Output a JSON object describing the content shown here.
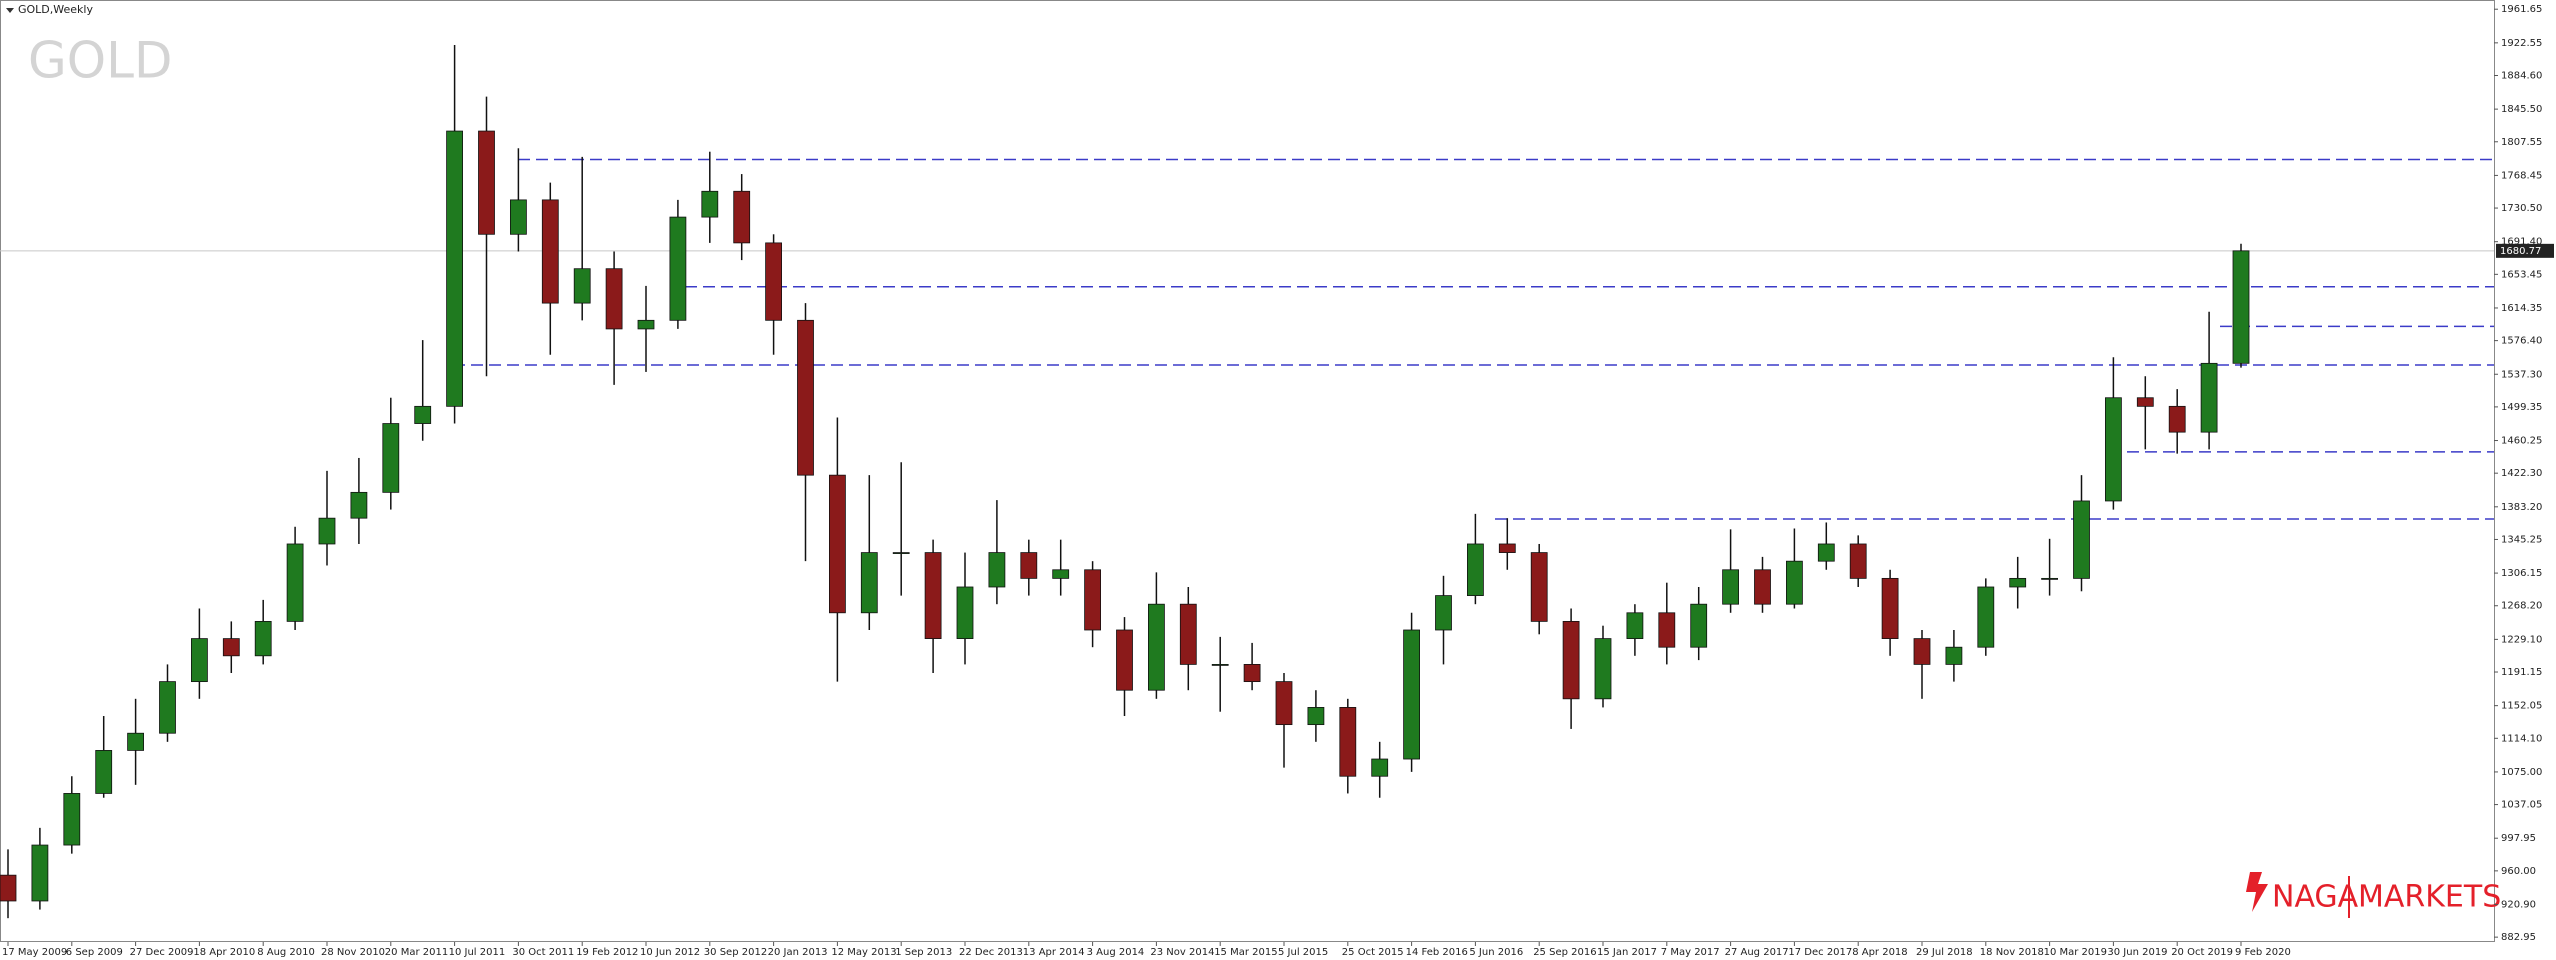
{
  "chart_data": {
    "type": "candlestick",
    "title": "GOLD,Weekly",
    "watermark": "GOLD",
    "brand": {
      "left": "NAGA",
      "right": "MARKETS"
    },
    "categories": [
      "17 May 2009",
      null,
      "6 Sep 2009",
      null,
      "27 Dec 2009",
      null,
      "18 Apr 2010",
      null,
      "8 Aug 2010",
      null,
      "28 Nov 2010",
      null,
      "20 Mar 2011",
      null,
      "10 Jul 2011",
      null,
      "30 Oct 2011",
      null,
      "19 Feb 2012",
      null,
      "10 Jun 2012",
      null,
      "30 Sep 2012",
      null,
      "20 Jan 2013",
      null,
      "12 May 2013",
      null,
      "1 Sep 2013",
      null,
      "22 Dec 2013",
      null,
      "13 Apr 2014",
      null,
      "3 Aug 2014",
      null,
      "23 Nov 2014",
      null,
      "15 Mar 2015",
      null,
      "5 Jul 2015",
      null,
      "25 Oct 2015",
      null,
      "14 Feb 2016",
      null,
      "5 Jun 2016",
      null,
      "25 Sep 2016",
      null,
      "15 Jan 2017",
      null,
      "7 May 2017",
      null,
      "27 Aug 2017",
      null,
      "17 Dec 2017",
      null,
      "8 Apr 2018",
      null,
      "29 Jul 2018",
      null,
      "18 Nov 2018",
      null,
      "10 Mar 2019",
      null,
      "30 Jun 2019",
      null,
      "20 Oct 2019",
      null,
      "9 Feb 2020"
    ],
    "open": [
      955,
      925,
      990,
      1050,
      1100,
      1120,
      1180,
      1230,
      1210,
      1250,
      1340,
      1370,
      1400,
      1480,
      1500,
      1820,
      1700,
      1740,
      1620,
      1660,
      1590,
      1600,
      1720,
      1750,
      1690,
      1600,
      1420,
      1260,
      1330,
      1330,
      1230,
      1290,
      1330,
      1300,
      1310,
      1240,
      1170,
      1270,
      1200,
      1200,
      1180,
      1130,
      1150,
      1070,
      1090,
      1240,
      1280,
      1340,
      1330,
      1250,
      1160,
      1230,
      1260,
      1220,
      1270,
      1310,
      1270,
      1320,
      1340,
      1300,
      1230,
      1200,
      1220,
      1290,
      1300,
      1300,
      1390,
      1510,
      1500,
      1470,
      1550
    ],
    "high": [
      985,
      1010,
      1070,
      1140,
      1160,
      1200,
      1265,
      1250,
      1275,
      1360,
      1425,
      1440,
      1510,
      1577,
      1920,
      1860,
      1800,
      1760,
      1790,
      1680,
      1640,
      1740,
      1796,
      1770,
      1700,
      1620,
      1487,
      1420,
      1435,
      1345,
      1330,
      1391,
      1345,
      1345,
      1320,
      1255,
      1307,
      1290,
      1232,
      1225,
      1190,
      1170,
      1160,
      1110,
      1260,
      1303,
      1375,
      1370,
      1340,
      1265,
      1245,
      1270,
      1295,
      1290,
      1357,
      1325,
      1358,
      1365,
      1350,
      1310,
      1240,
      1240,
      1300,
      1325,
      1346,
      1420,
      1557,
      1535,
      1520,
      1610,
      1689
    ],
    "low": [
      905,
      915,
      980,
      1045,
      1060,
      1110,
      1160,
      1190,
      1200,
      1240,
      1315,
      1340,
      1380,
      1460,
      1480,
      1535,
      1680,
      1560,
      1600,
      1525,
      1540,
      1590,
      1690,
      1670,
      1560,
      1320,
      1180,
      1240,
      1280,
      1190,
      1200,
      1270,
      1280,
      1280,
      1220,
      1140,
      1160,
      1170,
      1145,
      1170,
      1080,
      1110,
      1050,
      1045,
      1075,
      1200,
      1270,
      1310,
      1235,
      1125,
      1150,
      1210,
      1200,
      1205,
      1260,
      1260,
      1265,
      1310,
      1290,
      1210,
      1160,
      1180,
      1210,
      1265,
      1280,
      1285,
      1380,
      1450,
      1445,
      1450,
      1545
    ],
    "close": [
      925,
      990,
      1050,
      1100,
      1120,
      1180,
      1230,
      1210,
      1250,
      1340,
      1370,
      1400,
      1480,
      1500,
      1820,
      1700,
      1740,
      1620,
      1660,
      1590,
      1600,
      1720,
      1750,
      1690,
      1600,
      1420,
      1260,
      1330,
      1330,
      1230,
      1290,
      1330,
      1300,
      1310,
      1240,
      1170,
      1270,
      1200,
      1200,
      1180,
      1130,
      1150,
      1070,
      1090,
      1240,
      1280,
      1340,
      1330,
      1250,
      1160,
      1230,
      1260,
      1220,
      1270,
      1310,
      1270,
      1320,
      1340,
      1300,
      1230,
      1200,
      1220,
      1290,
      1300,
      1300,
      1390,
      1510,
      1500,
      1470,
      1550,
      1680.77
    ],
    "up_color": "#1f7a1f",
    "down_color": "#8b1a1a",
    "level_color": "#3b3bc8",
    "levels": [
      1787,
      1639,
      1593,
      1548,
      1447,
      1369
    ],
    "ylim": [
      877.3,
      1971.2
    ],
    "yticks": [
      1961.65,
      1922.55,
      {
        "value": 1884.6,
        "label": "1884.60"
      },
      {
        "value": 1845.5,
        "label": "1845.50"
      },
      1807.55,
      1768.45,
      {
        "value": 1730.5,
        "label": "1730.50"
      },
      {
        "value": 1691.4,
        "label": "1691.40"
      },
      1653.45,
      1614.35,
      {
        "value": 1576.4,
        "label": "1576.40"
      },
      {
        "value": 1537.3,
        "label": "1537.30"
      },
      1499.35,
      1460.25,
      {
        "value": 1422.3,
        "label": "1422.30"
      },
      {
        "value": 1383.2,
        "label": "1383.20"
      },
      1345.25,
      1306.15,
      {
        "value": 1268.2,
        "label": "1268.20"
      },
      {
        "value": 1229.1,
        "label": "1229.10"
      },
      1191.15,
      1152.05,
      {
        "value": 1114.1,
        "label": "1114.10"
      },
      {
        "value": 1075,
        "label": "1075.00"
      },
      1037.05,
      997.95,
      {
        "value": 960,
        "label": "960.00"
      },
      {
        "value": 920.9,
        "label": "920.90"
      },
      882.95
    ],
    "grid": false
  }
}
